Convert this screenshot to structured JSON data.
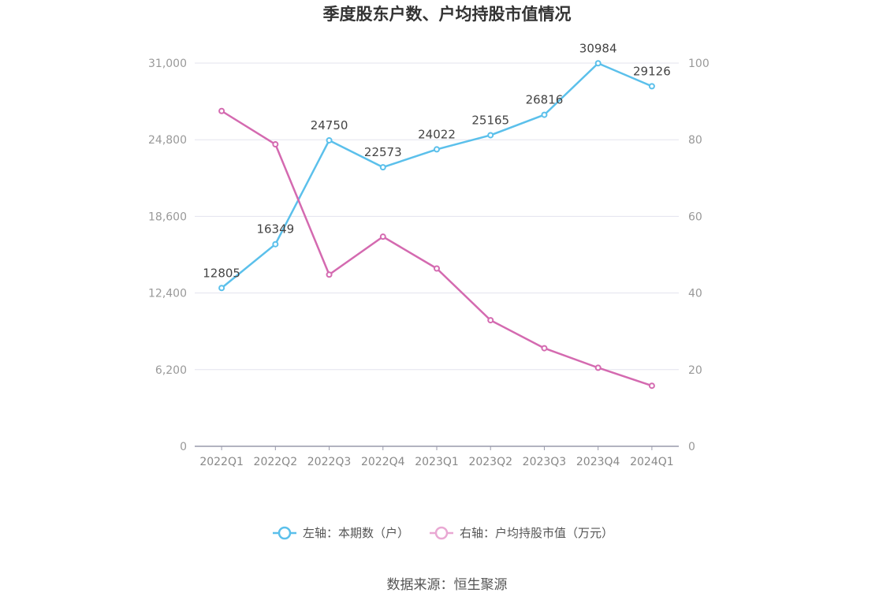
{
  "chart_data": {
    "type": "line",
    "title": "季度股东户数、户均持股市值情况",
    "categories": [
      "2022Q1",
      "2022Q2",
      "2022Q3",
      "2022Q4",
      "2023Q1",
      "2023Q2",
      "2023Q3",
      "2023Q4",
      "2024Q1"
    ],
    "series": [
      {
        "name": "左轴：本期数（户）",
        "axis": "left",
        "color": "#5bc0eb",
        "values": [
          12805,
          16349,
          24750,
          22573,
          24022,
          25165,
          26816,
          30984,
          29126
        ]
      },
      {
        "name": "右轴：户均持股市值（万元）",
        "axis": "right",
        "color": "#d46ab0",
        "values": [
          87.5,
          78.8,
          44.8,
          54.7,
          46.4,
          32.9,
          25.6,
          20.5,
          15.8
        ]
      }
    ],
    "left_axis": {
      "min": 0,
      "max": 31000,
      "ticks": [
        "0",
        "6,200",
        "12,400",
        "18,600",
        "24,800",
        "31,000"
      ],
      "tick_values": [
        0,
        6200,
        12400,
        18600,
        24800,
        31000
      ]
    },
    "right_axis": {
      "min": 0,
      "max": 100,
      "ticks": [
        "0",
        "20",
        "40",
        "60",
        "80",
        "100"
      ],
      "tick_values": [
        0,
        20,
        40,
        60,
        80,
        100
      ]
    },
    "grid": true,
    "legend_position": "bottom"
  },
  "source": "数据来源：恒生聚源"
}
